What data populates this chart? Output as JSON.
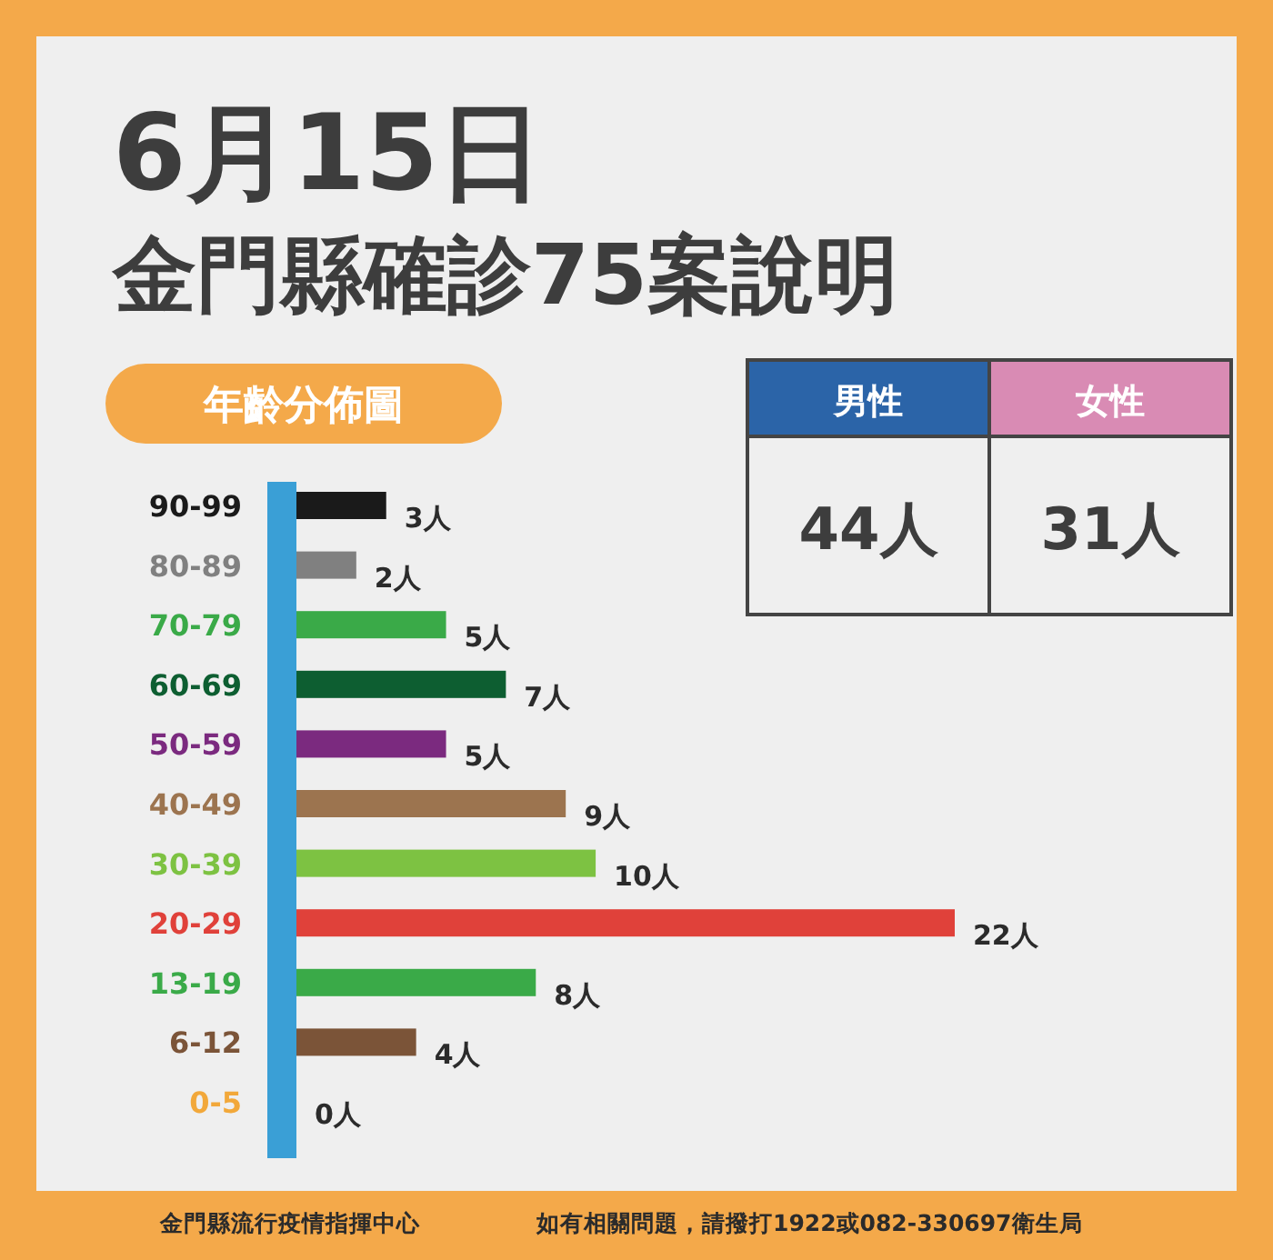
{
  "chart_data": [
    {
      "type": "other",
      "title": "6月15日",
      "subtitle": "金門縣確診75案說明",
      "categories": [
        "男性",
        "女性"
      ],
      "values": [
        44,
        31
      ],
      "value_labels": [
        "44人",
        "31人"
      ],
      "colors": [
        "#2b64a8",
        "#d98bb4"
      ],
      "annotations": [
        "金門縣流行疫情指揮中心",
        "如有相關問題，請撥打1922或082-330697衛生局"
      ]
    },
    {
      "type": "bar",
      "orientation": "horizontal",
      "title": "年齡分佈圖",
      "categories": [
        "90-99",
        "80-89",
        "70-79",
        "60-69",
        "50-59",
        "40-49",
        "30-39",
        "20-29",
        "13-19",
        "6-12",
        "0-5"
      ],
      "values": [
        3,
        2,
        5,
        7,
        5,
        9,
        10,
        22,
        8,
        4,
        0
      ],
      "value_labels": [
        "3人",
        "2人",
        "5人",
        "7人",
        "5人",
        "9人",
        "10人",
        "22人",
        "8人",
        "4人",
        "0人"
      ],
      "colors": [
        "#1a1a1a",
        "#808080",
        "#3aaa48",
        "#0d5e31",
        "#7b2a7f",
        "#9c744f",
        "#7dc242",
        "#e0413a",
        "#3aaa48",
        "#7b5438",
        "#f2a83a"
      ]
    }
  ]
}
